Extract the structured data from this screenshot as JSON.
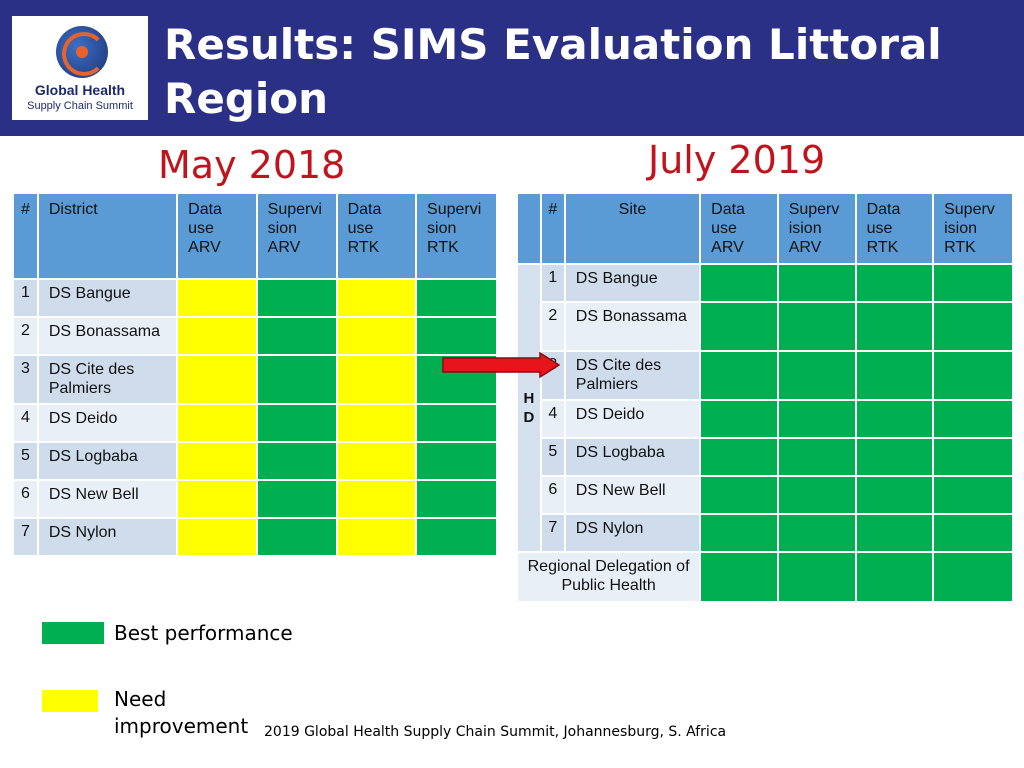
{
  "header": {
    "title": "Results: SIMS  Evaluation Littoral Region",
    "logo_line1": "Global Health",
    "logo_line2": "Supply Chain Summit"
  },
  "subtitles": {
    "left": "May 2018",
    "right": "July 2019"
  },
  "colors": {
    "header_bg": "#2b3087",
    "best": "#00b050",
    "need": "#ffff00",
    "table_header": "#5b9bd5",
    "subtitle": "#c0141c",
    "arrow": "#e8141c"
  },
  "table_2018": {
    "headers": [
      "#",
      "District",
      "Data use ARV",
      "Supervi sion ARV",
      "Data use RTK",
      "Supervi sion RTK"
    ],
    "rows": [
      {
        "num": "1",
        "district": "DS Bangue",
        "status": [
          "need",
          "best",
          "need",
          "best"
        ]
      },
      {
        "num": "2",
        "district": "DS Bonassama",
        "status": [
          "need",
          "best",
          "need",
          "best"
        ]
      },
      {
        "num": "3",
        "district": "DS Cite des Palmiers",
        "status": [
          "need",
          "best",
          "need",
          "best"
        ]
      },
      {
        "num": "4",
        "district": "DS Deido",
        "status": [
          "need",
          "best",
          "need",
          "best"
        ]
      },
      {
        "num": "5",
        "district": "DS Logbaba",
        "status": [
          "need",
          "best",
          "need",
          "best"
        ]
      },
      {
        "num": "6",
        "district": "DS New Bell",
        "status": [
          "need",
          "best",
          "need",
          "best"
        ]
      },
      {
        "num": "7",
        "district": "DS Nylon",
        "status": [
          "need",
          "best",
          "need",
          "best"
        ]
      }
    ]
  },
  "table_2019": {
    "headers": [
      "",
      "#",
      "Site",
      "Data use ARV",
      "Superv ision ARV",
      "Data use RTK",
      "Superv ision RTK"
    ],
    "group_label": "H D",
    "rows": [
      {
        "num": "1",
        "site": "DS Bangue",
        "status": [
          "best",
          "best",
          "best",
          "best"
        ]
      },
      {
        "num": "2",
        "site": "DS Bonassama",
        "status": [
          "best",
          "best",
          "best",
          "best"
        ]
      },
      {
        "num": "3",
        "site": "DS Cite des Palmiers",
        "status": [
          "best",
          "best",
          "best",
          "best"
        ]
      },
      {
        "num": "4",
        "site": "DS Deido",
        "status": [
          "best",
          "best",
          "best",
          "best"
        ]
      },
      {
        "num": "5",
        "site": "DS Logbaba",
        "status": [
          "best",
          "best",
          "best",
          "best"
        ]
      },
      {
        "num": "6",
        "site": "DS New Bell",
        "status": [
          "best",
          "best",
          "best",
          "best"
        ]
      },
      {
        "num": "7",
        "site": "DS Nylon",
        "status": [
          "best",
          "best",
          "best",
          "best"
        ]
      }
    ],
    "regional": {
      "label": "Regional Delegation of Public Health",
      "status": [
        "best",
        "best",
        "best",
        "best"
      ]
    }
  },
  "legend": {
    "best_label": "Best performance",
    "need_label": "Need improvement"
  },
  "footer": "2019 Global Health Supply Chain Summit, Johannesburg, S. Africa"
}
